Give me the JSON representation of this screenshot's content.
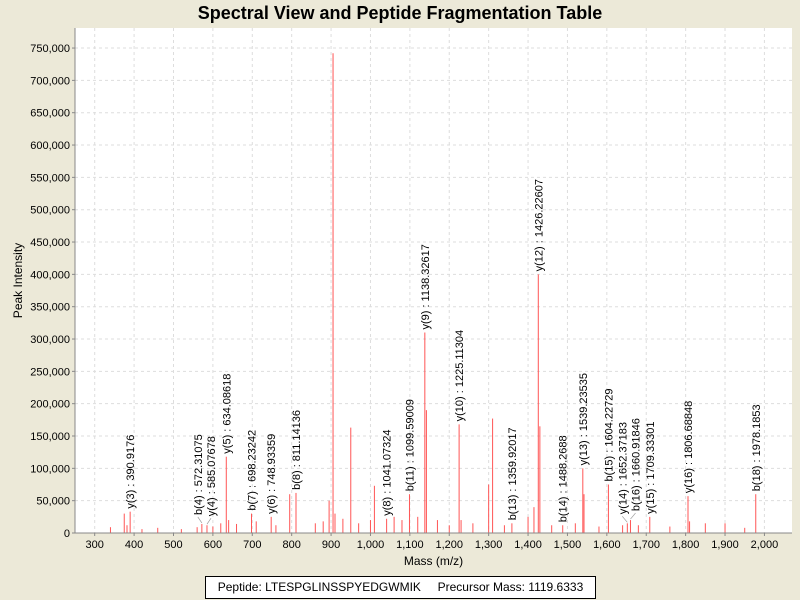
{
  "chart_data": {
    "type": "bar",
    "title": "Spectral View and Peptide Fragmentation Table",
    "xlabel": "Mass (m/z)",
    "ylabel": "Peak Intensity",
    "xlim": [
      250,
      2070
    ],
    "ylim": [
      0,
      781000
    ],
    "xticks": [
      300,
      400,
      500,
      600,
      700,
      800,
      900,
      1000,
      1100,
      1200,
      1300,
      1400,
      1500,
      1600,
      1700,
      1800,
      1900,
      2000
    ],
    "xtick_labels": [
      "300",
      "400",
      "500",
      "600",
      "700",
      "800",
      "900",
      "1,000",
      "1,100",
      "1,200",
      "1,300",
      "1,400",
      "1,500",
      "1,600",
      "1,700",
      "1,800",
      "1,900",
      "2,000"
    ],
    "yticks": [
      0,
      50000,
      100000,
      150000,
      200000,
      250000,
      300000,
      350000,
      400000,
      450000,
      500000,
      550000,
      600000,
      650000,
      700000,
      750000
    ],
    "ytick_labels": [
      "0",
      "50,000",
      "100,000",
      "150,000",
      "200,000",
      "250,000",
      "300,000",
      "350,000",
      "400,000",
      "450,000",
      "500,000",
      "550,000",
      "600,000",
      "650,000",
      "700,000",
      "750,000"
    ],
    "grid": true,
    "color": "#ff5555",
    "peaks": [
      [
        340,
        9000
      ],
      [
        375,
        30000
      ],
      [
        382,
        12000
      ],
      [
        390,
        33000
      ],
      [
        420,
        6000
      ],
      [
        460,
        8000
      ],
      [
        520,
        6000
      ],
      [
        560,
        9000
      ],
      [
        572,
        14000
      ],
      [
        585,
        12000
      ],
      [
        600,
        10000
      ],
      [
        620,
        15000
      ],
      [
        634,
        118000
      ],
      [
        640,
        20000
      ],
      [
        660,
        14000
      ],
      [
        698,
        30000
      ],
      [
        710,
        18000
      ],
      [
        748,
        25000
      ],
      [
        760,
        12000
      ],
      [
        795,
        60000
      ],
      [
        811,
        62000
      ],
      [
        860,
        15000
      ],
      [
        880,
        18000
      ],
      [
        895,
        50000
      ],
      [
        905,
        742000
      ],
      [
        910,
        30000
      ],
      [
        930,
        22000
      ],
      [
        950,
        163000
      ],
      [
        970,
        15000
      ],
      [
        1000,
        20000
      ],
      [
        1010,
        73000
      ],
      [
        1041,
        22000
      ],
      [
        1060,
        25000
      ],
      [
        1080,
        20000
      ],
      [
        1099,
        60000
      ],
      [
        1120,
        25000
      ],
      [
        1138,
        310000
      ],
      [
        1142,
        190000
      ],
      [
        1170,
        20000
      ],
      [
        1200,
        12000
      ],
      [
        1225,
        168000
      ],
      [
        1230,
        20000
      ],
      [
        1260,
        15000
      ],
      [
        1300,
        75000
      ],
      [
        1310,
        177000
      ],
      [
        1340,
        12000
      ],
      [
        1359,
        15000
      ],
      [
        1400,
        25000
      ],
      [
        1415,
        40000
      ],
      [
        1426,
        400000
      ],
      [
        1430,
        165000
      ],
      [
        1460,
        12000
      ],
      [
        1488,
        12000
      ],
      [
        1520,
        15000
      ],
      [
        1539,
        100000
      ],
      [
        1542,
        60000
      ],
      [
        1580,
        10000
      ],
      [
        1604,
        75000
      ],
      [
        1640,
        12000
      ],
      [
        1652,
        15000
      ],
      [
        1660,
        20000
      ],
      [
        1680,
        12000
      ],
      [
        1709,
        25000
      ],
      [
        1760,
        10000
      ],
      [
        1806,
        57000
      ],
      [
        1810,
        18000
      ],
      [
        1850,
        15000
      ],
      [
        1900,
        15000
      ],
      [
        1950,
        8000
      ],
      [
        1978,
        60000
      ]
    ],
    "annotations": [
      {
        "text": "y(3) : 390.9176",
        "mass": 390,
        "intensity": 33000
      },
      {
        "text": "b(4) : 572.31075",
        "mass": 572,
        "intensity": 14000
      },
      {
        "text": "y(4) : 585.07678",
        "mass": 585,
        "intensity": 12000
      },
      {
        "text": "y(5) : 634.08618",
        "mass": 634,
        "intensity": 118000
      },
      {
        "text": "b(7) : 698.23242",
        "mass": 698,
        "intensity": 30000
      },
      {
        "text": "y(6) : 748.93359",
        "mass": 748,
        "intensity": 25000
      },
      {
        "text": "b(8) : 811.14136",
        "mass": 811,
        "intensity": 62000
      },
      {
        "text": "y(8) : 1041.07324",
        "mass": 1041,
        "intensity": 22000
      },
      {
        "text": "b(11) : 1099.59009",
        "mass": 1099,
        "intensity": 60000
      },
      {
        "text": "y(9) : 1138.32617",
        "mass": 1138,
        "intensity": 310000
      },
      {
        "text": "y(10) : 1225.11304",
        "mass": 1225,
        "intensity": 168000
      },
      {
        "text": "b(13) : 1359.92017",
        "mass": 1359,
        "intensity": 15000
      },
      {
        "text": "y(12) : 1426.22607",
        "mass": 1426,
        "intensity": 400000
      },
      {
        "text": "b(14) : 1488.2688",
        "mass": 1488,
        "intensity": 12000
      },
      {
        "text": "y(13) : 1539.23535",
        "mass": 1539,
        "intensity": 100000
      },
      {
        "text": "b(15) : 1604.22729",
        "mass": 1604,
        "intensity": 75000
      },
      {
        "text": "y(14) : 1652.37183",
        "mass": 1652,
        "intensity": 15000
      },
      {
        "text": "b(16) : 1660.91846",
        "mass": 1660,
        "intensity": 20000
      },
      {
        "text": "y(15) : 1709.33301",
        "mass": 1709,
        "intensity": 25000
      },
      {
        "text": "y(16) : 1806.68848",
        "mass": 1806,
        "intensity": 57000
      },
      {
        "text": "b(18) : 1978.1853",
        "mass": 1978,
        "intensity": 60000
      }
    ]
  },
  "legend": {
    "peptide": "Peptide: LTESPGLINSSPYEDGWMIK",
    "precursor": "Precursor Mass: 1119.6333"
  }
}
